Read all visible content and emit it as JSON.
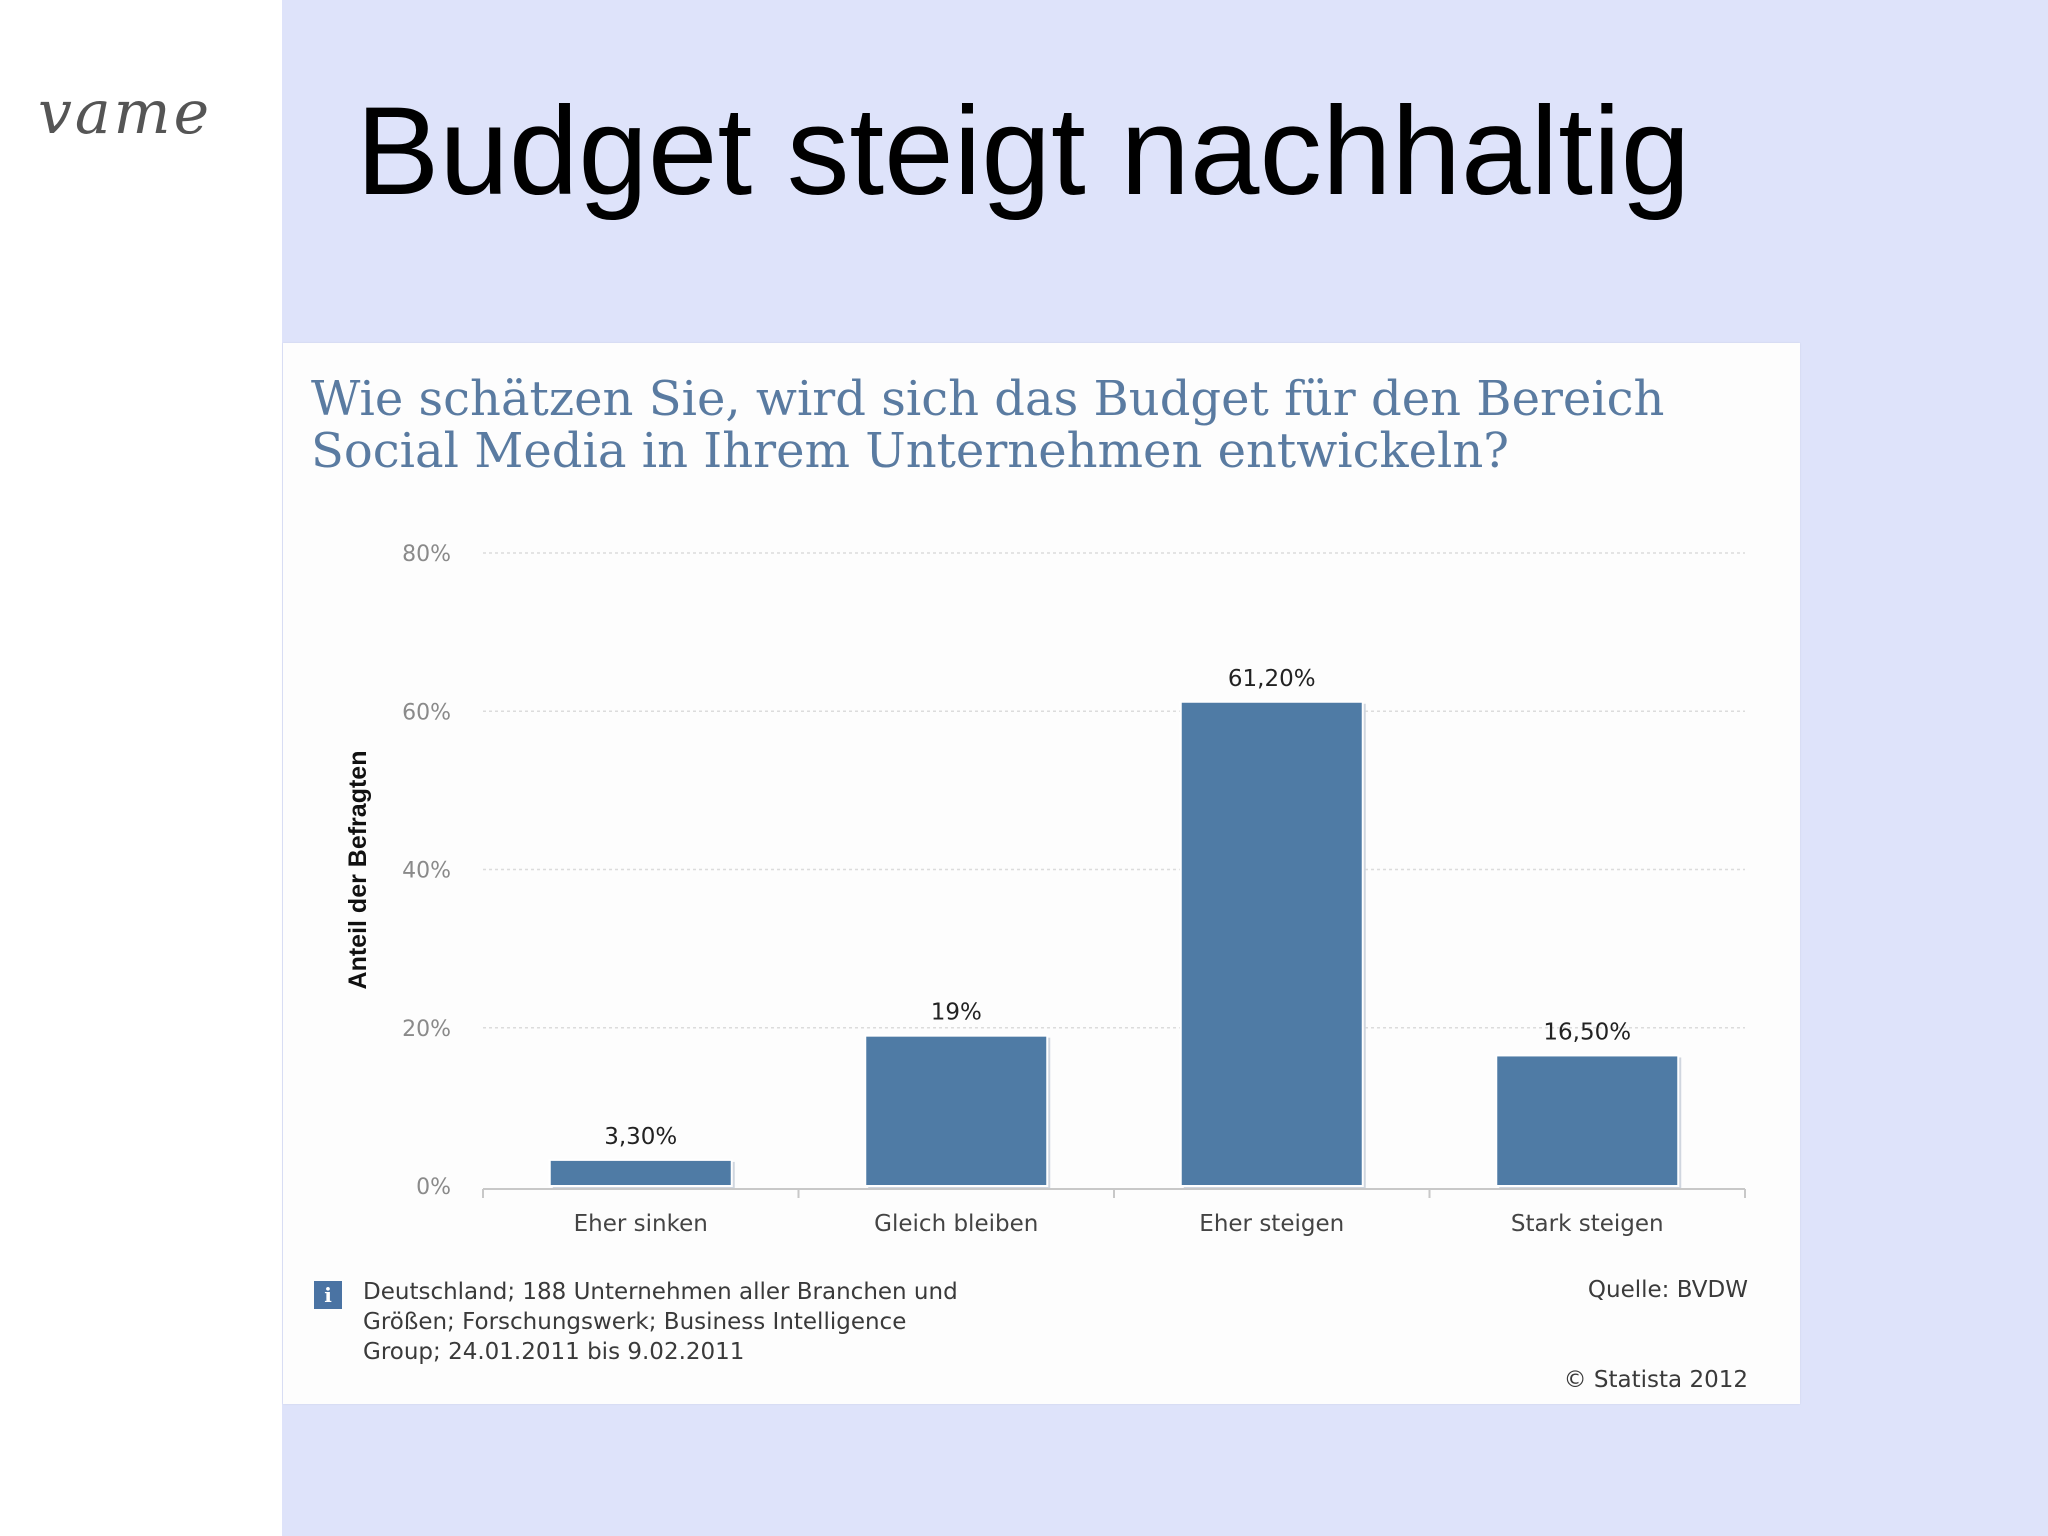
{
  "logo": {
    "text": "vame"
  },
  "slide": {
    "title": "Budget steigt nachhaltig"
  },
  "chart_data": {
    "type": "bar",
    "title": "Wie schätzen Sie, wird sich das Budget für den Bereich Social Media in Ihrem Unternehmen entwickeln?",
    "categories": [
      "Eher sinken",
      "Gleich bleiben",
      "Eher steigen",
      "Stark steigen"
    ],
    "values": [
      3.3,
      19,
      61.2,
      16.5
    ],
    "value_labels": [
      "3,30%",
      "19%",
      "61,20%",
      "16,50%"
    ],
    "ylabel": "Anteil der Befragten",
    "xlabel": "",
    "ylim": [
      0,
      80
    ],
    "yticks": [
      0,
      20,
      40,
      60,
      80
    ],
    "ytick_labels": [
      "0%",
      "20%",
      "40%",
      "60%",
      "80%"
    ],
    "grid": true,
    "bar_color": "#4f7ba5"
  },
  "footnote": {
    "lines": [
      "Deutschland; 188 Unternehmen aller Branchen und",
      "Größen; Forschungswerk; Business Intelligence",
      "Group; 24.01.2011 bis 9.02.2011"
    ],
    "icon": "info-icon"
  },
  "source": "Quelle: BVDW",
  "copyright": "© Statista 2012"
}
